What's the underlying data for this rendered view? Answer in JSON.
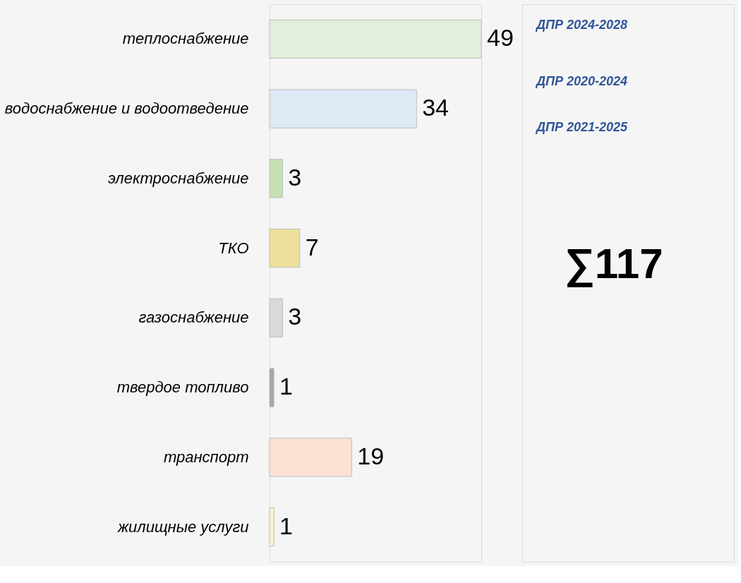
{
  "chart_data": {
    "type": "bar",
    "orientation": "horizontal",
    "categories": [
      "теплоснабжение",
      "водоснабжение и водоотведение",
      "электроснабжение",
      "ТКО",
      "газоснабжение",
      "твердое топливо",
      "транспорт",
      "жилищные услуги"
    ],
    "values": [
      49,
      34,
      3,
      7,
      3,
      1,
      19,
      1
    ],
    "colors": [
      "#e2efda",
      "#dde9f5",
      "#c6e0b4",
      "#ece09c",
      "#d9d9d9",
      "#a6a6a6",
      "#fbe2d5",
      "#fff2cc"
    ],
    "data_labels": true,
    "annotations": [
      "ДПР 2024-2028",
      "ДПР 2020-2024",
      "ДПР 2021-2025",
      "∑117"
    ]
  }
}
